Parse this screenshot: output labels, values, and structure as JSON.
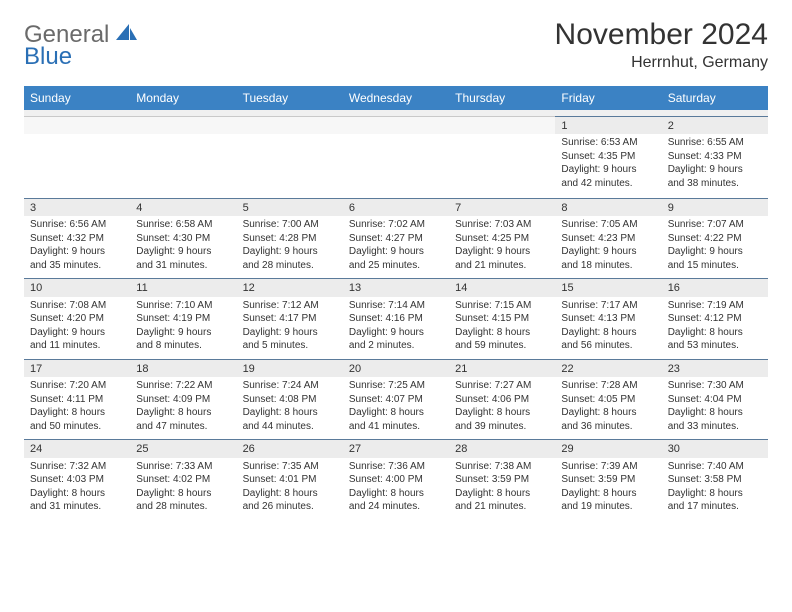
{
  "logo": {
    "general": "General",
    "blue": "Blue"
  },
  "title": "November 2024",
  "location": "Herrnhut, Germany",
  "colors": {
    "header_bg": "#3b82c4",
    "header_text": "#ffffff",
    "daynum_bg": "#ececec",
    "row_border": "#5a7a9a",
    "text": "#333333",
    "logo_gray": "#6a6a6a",
    "logo_blue": "#2a6fb5"
  },
  "dayNames": [
    "Sunday",
    "Monday",
    "Tuesday",
    "Wednesday",
    "Thursday",
    "Friday",
    "Saturday"
  ],
  "weeks": [
    [
      null,
      null,
      null,
      null,
      null,
      {
        "n": "1",
        "sr": "Sunrise: 6:53 AM",
        "ss": "Sunset: 4:35 PM",
        "dl": "Daylight: 9 hours and 42 minutes."
      },
      {
        "n": "2",
        "sr": "Sunrise: 6:55 AM",
        "ss": "Sunset: 4:33 PM",
        "dl": "Daylight: 9 hours and 38 minutes."
      }
    ],
    [
      {
        "n": "3",
        "sr": "Sunrise: 6:56 AM",
        "ss": "Sunset: 4:32 PM",
        "dl": "Daylight: 9 hours and 35 minutes."
      },
      {
        "n": "4",
        "sr": "Sunrise: 6:58 AM",
        "ss": "Sunset: 4:30 PM",
        "dl": "Daylight: 9 hours and 31 minutes."
      },
      {
        "n": "5",
        "sr": "Sunrise: 7:00 AM",
        "ss": "Sunset: 4:28 PM",
        "dl": "Daylight: 9 hours and 28 minutes."
      },
      {
        "n": "6",
        "sr": "Sunrise: 7:02 AM",
        "ss": "Sunset: 4:27 PM",
        "dl": "Daylight: 9 hours and 25 minutes."
      },
      {
        "n": "7",
        "sr": "Sunrise: 7:03 AM",
        "ss": "Sunset: 4:25 PM",
        "dl": "Daylight: 9 hours and 21 minutes."
      },
      {
        "n": "8",
        "sr": "Sunrise: 7:05 AM",
        "ss": "Sunset: 4:23 PM",
        "dl": "Daylight: 9 hours and 18 minutes."
      },
      {
        "n": "9",
        "sr": "Sunrise: 7:07 AM",
        "ss": "Sunset: 4:22 PM",
        "dl": "Daylight: 9 hours and 15 minutes."
      }
    ],
    [
      {
        "n": "10",
        "sr": "Sunrise: 7:08 AM",
        "ss": "Sunset: 4:20 PM",
        "dl": "Daylight: 9 hours and 11 minutes."
      },
      {
        "n": "11",
        "sr": "Sunrise: 7:10 AM",
        "ss": "Sunset: 4:19 PM",
        "dl": "Daylight: 9 hours and 8 minutes."
      },
      {
        "n": "12",
        "sr": "Sunrise: 7:12 AM",
        "ss": "Sunset: 4:17 PM",
        "dl": "Daylight: 9 hours and 5 minutes."
      },
      {
        "n": "13",
        "sr": "Sunrise: 7:14 AM",
        "ss": "Sunset: 4:16 PM",
        "dl": "Daylight: 9 hours and 2 minutes."
      },
      {
        "n": "14",
        "sr": "Sunrise: 7:15 AM",
        "ss": "Sunset: 4:15 PM",
        "dl": "Daylight: 8 hours and 59 minutes."
      },
      {
        "n": "15",
        "sr": "Sunrise: 7:17 AM",
        "ss": "Sunset: 4:13 PM",
        "dl": "Daylight: 8 hours and 56 minutes."
      },
      {
        "n": "16",
        "sr": "Sunrise: 7:19 AM",
        "ss": "Sunset: 4:12 PM",
        "dl": "Daylight: 8 hours and 53 minutes."
      }
    ],
    [
      {
        "n": "17",
        "sr": "Sunrise: 7:20 AM",
        "ss": "Sunset: 4:11 PM",
        "dl": "Daylight: 8 hours and 50 minutes."
      },
      {
        "n": "18",
        "sr": "Sunrise: 7:22 AM",
        "ss": "Sunset: 4:09 PM",
        "dl": "Daylight: 8 hours and 47 minutes."
      },
      {
        "n": "19",
        "sr": "Sunrise: 7:24 AM",
        "ss": "Sunset: 4:08 PM",
        "dl": "Daylight: 8 hours and 44 minutes."
      },
      {
        "n": "20",
        "sr": "Sunrise: 7:25 AM",
        "ss": "Sunset: 4:07 PM",
        "dl": "Daylight: 8 hours and 41 minutes."
      },
      {
        "n": "21",
        "sr": "Sunrise: 7:27 AM",
        "ss": "Sunset: 4:06 PM",
        "dl": "Daylight: 8 hours and 39 minutes."
      },
      {
        "n": "22",
        "sr": "Sunrise: 7:28 AM",
        "ss": "Sunset: 4:05 PM",
        "dl": "Daylight: 8 hours and 36 minutes."
      },
      {
        "n": "23",
        "sr": "Sunrise: 7:30 AM",
        "ss": "Sunset: 4:04 PM",
        "dl": "Daylight: 8 hours and 33 minutes."
      }
    ],
    [
      {
        "n": "24",
        "sr": "Sunrise: 7:32 AM",
        "ss": "Sunset: 4:03 PM",
        "dl": "Daylight: 8 hours and 31 minutes."
      },
      {
        "n": "25",
        "sr": "Sunrise: 7:33 AM",
        "ss": "Sunset: 4:02 PM",
        "dl": "Daylight: 8 hours and 28 minutes."
      },
      {
        "n": "26",
        "sr": "Sunrise: 7:35 AM",
        "ss": "Sunset: 4:01 PM",
        "dl": "Daylight: 8 hours and 26 minutes."
      },
      {
        "n": "27",
        "sr": "Sunrise: 7:36 AM",
        "ss": "Sunset: 4:00 PM",
        "dl": "Daylight: 8 hours and 24 minutes."
      },
      {
        "n": "28",
        "sr": "Sunrise: 7:38 AM",
        "ss": "Sunset: 3:59 PM",
        "dl": "Daylight: 8 hours and 21 minutes."
      },
      {
        "n": "29",
        "sr": "Sunrise: 7:39 AM",
        "ss": "Sunset: 3:59 PM",
        "dl": "Daylight: 8 hours and 19 minutes."
      },
      {
        "n": "30",
        "sr": "Sunrise: 7:40 AM",
        "ss": "Sunset: 3:58 PM",
        "dl": "Daylight: 8 hours and 17 minutes."
      }
    ]
  ]
}
